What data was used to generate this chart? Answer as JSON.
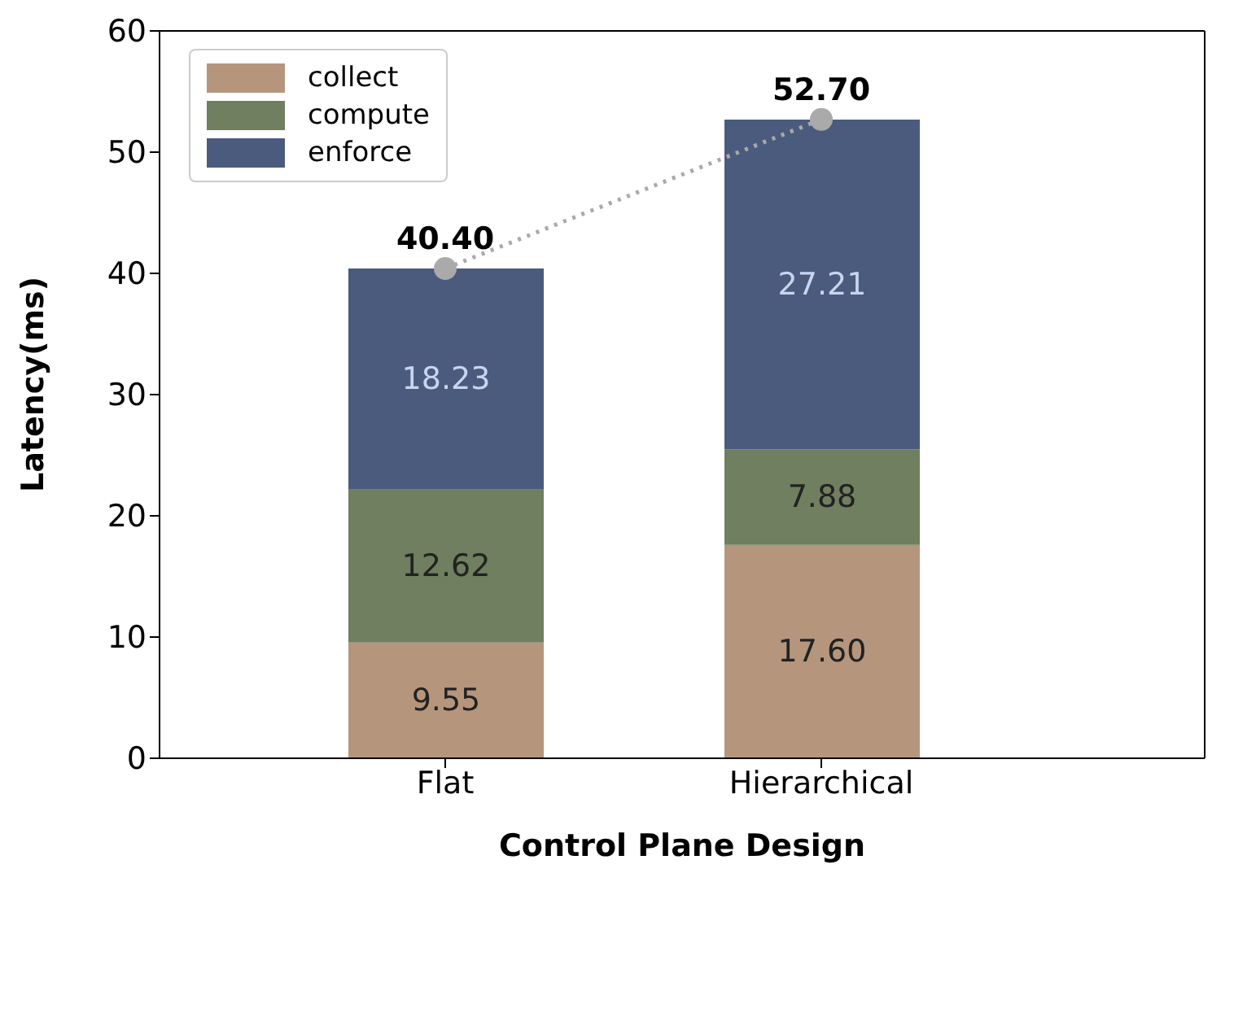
{
  "chart_data": {
    "type": "bar",
    "stacked": true,
    "xlabel": "Control Plane Design",
    "ylabel": "Latency(ms)",
    "categories": [
      "Flat",
      "Hierarchical"
    ],
    "series": [
      {
        "name": "collect",
        "color": "#b5967c",
        "values": [
          9.55,
          17.6
        ],
        "value_labels": [
          "9.55",
          "17.60"
        ]
      },
      {
        "name": "compute",
        "color": "#6f7f5f",
        "values": [
          12.62,
          7.88
        ],
        "value_labels": [
          "12.62",
          "7.88"
        ]
      },
      {
        "name": "enforce",
        "color": "#4a5b7e",
        "values": [
          18.23,
          27.21
        ],
        "value_labels": [
          "18.23",
          "27.21"
        ]
      },
      {
        "type": "line",
        "color": "#aaaaaa",
        "values": [
          40.4,
          52.7
        ],
        "line_style": "dotted",
        "marker": "circle"
      }
    ],
    "totals": [
      "40.40",
      "52.70"
    ],
    "ylim": [
      0,
      60
    ],
    "yticks": [
      0,
      10,
      20,
      30,
      40,
      50,
      60
    ],
    "legend": "top left"
  }
}
